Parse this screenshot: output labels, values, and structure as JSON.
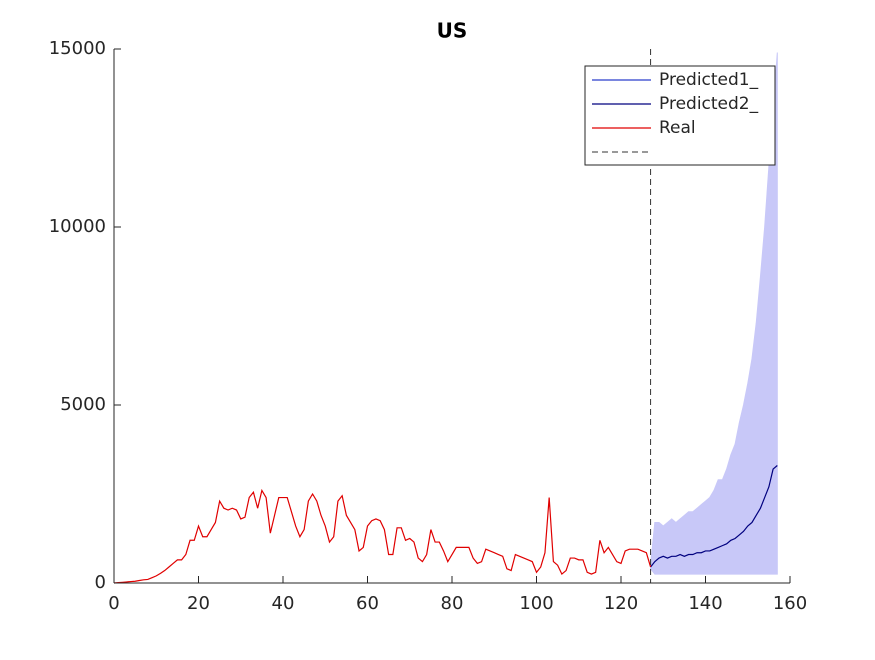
{
  "chart_data": {
    "type": "line",
    "title": "US",
    "xlim": [
      0,
      160
    ],
    "xticks": [
      0,
      20,
      40,
      60,
      80,
      100,
      120,
      140,
      160
    ],
    "ylim": [
      0,
      15000
    ],
    "yticks": [
      0,
      5000,
      10000,
      15000
    ],
    "series": [
      {
        "name": "Predicted1_",
        "color": "#2a3fcc",
        "fill": "#c8c8f8",
        "x": [
          127,
          128,
          129,
          130,
          131,
          132,
          133,
          134,
          135,
          136,
          137,
          138,
          139,
          140,
          141,
          142,
          143,
          144,
          145,
          146,
          147,
          148,
          149,
          150,
          151,
          152,
          153,
          154,
          155,
          156,
          157
        ],
        "upper": [
          500,
          1700,
          1700,
          1600,
          1700,
          1800,
          1700,
          1800,
          1900,
          2000,
          2000,
          2100,
          2200,
          2300,
          2400,
          2600,
          2900,
          2900,
          3200,
          3600,
          3900,
          4500,
          5000,
          5600,
          6300,
          7300,
          8600,
          10000,
          11700,
          13300,
          14900
        ],
        "lower": [
          400,
          250,
          250,
          250,
          250,
          250,
          250,
          250,
          250,
          250,
          250,
          250,
          250,
          250,
          250,
          250,
          250,
          250,
          250,
          250,
          250,
          250,
          250,
          250,
          250,
          250,
          250,
          250,
          250,
          250,
          250
        ]
      },
      {
        "name": "Predicted2_",
        "color": "#00007f",
        "x": [
          127,
          128,
          129,
          130,
          131,
          132,
          133,
          134,
          135,
          136,
          137,
          138,
          139,
          140,
          141,
          142,
          143,
          144,
          145,
          146,
          147,
          148,
          149,
          150,
          151,
          152,
          153,
          154,
          155,
          156,
          157
        ],
        "values": [
          450,
          600,
          700,
          750,
          700,
          750,
          750,
          800,
          750,
          800,
          800,
          850,
          850,
          900,
          900,
          950,
          1000,
          1050,
          1100,
          1200,
          1250,
          1350,
          1450,
          1600,
          1700,
          1900,
          2100,
          2400,
          2700,
          3200,
          3300
        ]
      },
      {
        "name": "Real",
        "color": "#e00000",
        "x": [
          0,
          1,
          2,
          3,
          4,
          5,
          6,
          7,
          8,
          9,
          10,
          11,
          12,
          13,
          14,
          15,
          16,
          17,
          18,
          19,
          20,
          21,
          22,
          23,
          24,
          25,
          26,
          27,
          28,
          29,
          30,
          31,
          32,
          33,
          34,
          35,
          36,
          37,
          38,
          39,
          40,
          41,
          42,
          43,
          44,
          45,
          46,
          47,
          48,
          49,
          50,
          51,
          52,
          53,
          54,
          55,
          56,
          57,
          58,
          59,
          60,
          61,
          62,
          63,
          64,
          65,
          66,
          67,
          68,
          69,
          70,
          71,
          72,
          73,
          74,
          75,
          76,
          77,
          78,
          79,
          80,
          81,
          82,
          83,
          84,
          85,
          86,
          87,
          88,
          89,
          90,
          91,
          92,
          93,
          94,
          95,
          96,
          97,
          98,
          99,
          100,
          101,
          102,
          103,
          104,
          105,
          106,
          107,
          108,
          109,
          110,
          111,
          112,
          113,
          114,
          115,
          116,
          117,
          118,
          119,
          120,
          121,
          122,
          123,
          124,
          125,
          126,
          127
        ],
        "values": [
          0,
          10,
          20,
          30,
          40,
          50,
          70,
          90,
          100,
          150,
          200,
          270,
          350,
          450,
          550,
          650,
          650,
          800,
          1200,
          1200,
          1600,
          1300,
          1300,
          1500,
          1700,
          2300,
          2100,
          2050,
          2100,
          2050,
          1800,
          1850,
          2400,
          2550,
          2100,
          2600,
          2400,
          1400,
          1900,
          2400,
          2400,
          2400,
          2000,
          1600,
          1300,
          1500,
          2300,
          2500,
          2300,
          1900,
          1600,
          1150,
          1300,
          2300,
          2450,
          1900,
          1700,
          1500,
          900,
          1000,
          1600,
          1750,
          1800,
          1750,
          1500,
          800,
          800,
          1550,
          1550,
          1200,
          1250,
          1150,
          700,
          600,
          800,
          1500,
          1150,
          1150,
          900,
          600,
          800,
          1000,
          1000,
          1000,
          1000,
          700,
          550,
          600,
          950,
          900,
          850,
          800,
          750,
          400,
          350,
          800,
          750,
          700,
          650,
          600,
          300,
          450,
          850,
          2400,
          600,
          500,
          250,
          350,
          700,
          700,
          650,
          650,
          300,
          250,
          300,
          1200,
          850,
          1000,
          800,
          600,
          550,
          900,
          950,
          950,
          950,
          900,
          850,
          450
        ]
      }
    ],
    "vline": 127,
    "vline_color": "#333333"
  }
}
